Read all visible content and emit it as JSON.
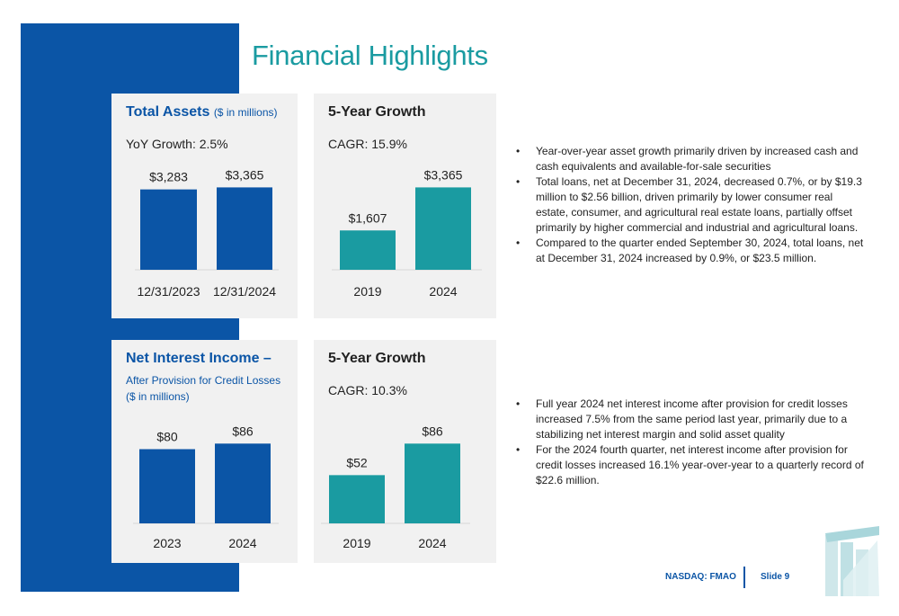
{
  "page": {
    "title": "Financial Highlights"
  },
  "panels": {
    "assets": {
      "title": "Total Assets",
      "unit": "($ in millions)",
      "stat": "YoY Growth: 2.5%"
    },
    "assets_growth": {
      "title": "5-Year Growth",
      "stat": "CAGR: 15.9%"
    },
    "nii": {
      "title": "Net Interest Income –",
      "subtitle_line1": "After Provision for Credit Losses",
      "subtitle_line2": "($ in millions)"
    },
    "nii_growth": {
      "title": "5-Year Growth",
      "stat": "CAGR: 10.3%"
    }
  },
  "bullets_top": [
    "Year-over-year asset growth primarily driven by increased cash and cash equivalents and available-for-sale securities",
    "Total loans, net at December 31, 2024, decreased 0.7%, or by $19.3 million to $2.56 billion, driven primarily by lower consumer real estate, consumer, and agricultural real estate loans, partially offset primarily by higher commercial and industrial and agricultural loans.",
    "Compared to the quarter ended September 30, 2024, total loans, net at December 31, 2024 increased by 0.9%, or $23.5 million."
  ],
  "bullets_bottom": [
    "Full year 2024 net interest income after provision for credit losses increased 7.5% from the same period last year, primarily due to a stabilizing net interest margin and solid asset quality",
    "For the 2024 fourth quarter, net interest income after provision for credit losses increased 16.1% year-over-year to a quarterly record of $22.6 million."
  ],
  "footer": {
    "ticker": "NASDAQ: FMAO",
    "slide": "Slide 9"
  },
  "colors": {
    "accent_blue": "#0b55a6",
    "accent_teal": "#1a9ba1",
    "panel_bg": "#f1f1f1"
  },
  "chart_data": [
    {
      "id": "total-assets",
      "type": "bar",
      "title": "Total Assets ($ in millions)",
      "categories": [
        "12/31/2023",
        "12/31/2024"
      ],
      "values": [
        3283,
        3365
      ],
      "labels": [
        "$3,283",
        "$3,365"
      ],
      "ylim": [
        0,
        3600
      ],
      "color": "#0b55a6",
      "grid": false
    },
    {
      "id": "assets-5yr",
      "type": "bar",
      "title": "5-Year Growth",
      "categories": [
        "2019",
        "2024"
      ],
      "values": [
        1607,
        3365
      ],
      "labels": [
        "$1,607",
        "$3,365"
      ],
      "ylim": [
        0,
        3600
      ],
      "color": "#1a9ba1",
      "grid": false
    },
    {
      "id": "nii",
      "type": "bar",
      "title": "Net Interest Income – After Provision for Credit Losses ($ in millions)",
      "categories": [
        "2023",
        "2024"
      ],
      "values": [
        80,
        86
      ],
      "labels": [
        "$80",
        "$86"
      ],
      "ylim": [
        0,
        95
      ],
      "color": "#0b55a6",
      "grid": false
    },
    {
      "id": "nii-5yr",
      "type": "bar",
      "title": "5-Year Growth",
      "categories": [
        "2019",
        "2024"
      ],
      "values": [
        52,
        86
      ],
      "labels": [
        "$52",
        "$86"
      ],
      "ylim": [
        0,
        95
      ],
      "color": "#1a9ba1",
      "grid": false
    }
  ]
}
